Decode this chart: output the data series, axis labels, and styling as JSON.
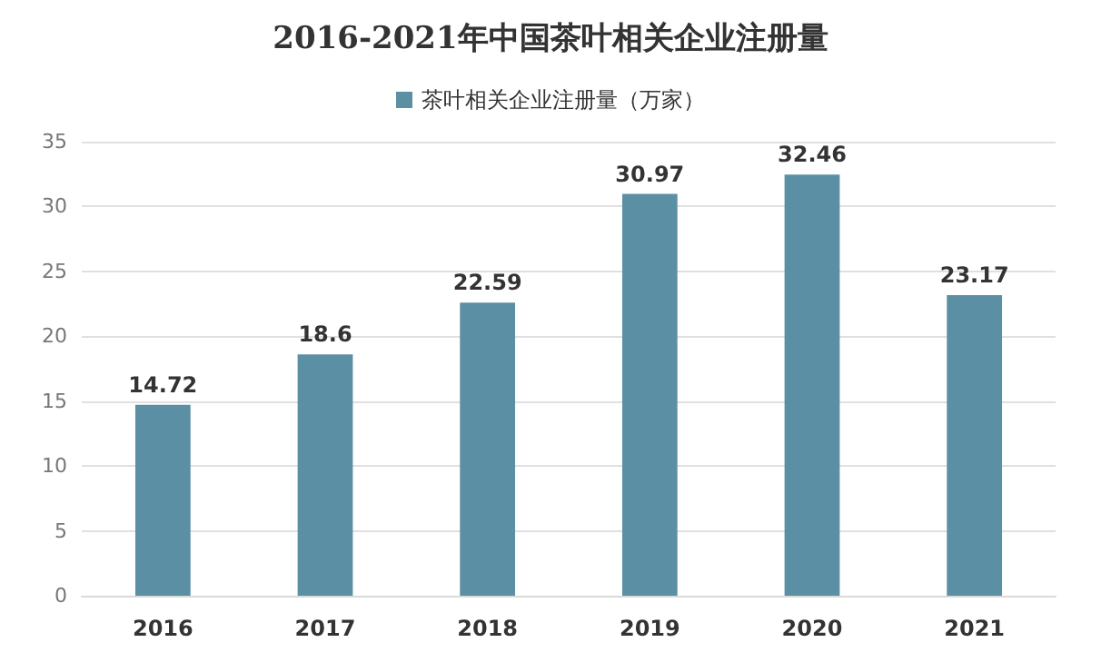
{
  "chart_data": {
    "type": "bar",
    "title": "2016-2021年中国茶叶相关企业注册量",
    "categories": [
      "2016",
      "2017",
      "2018",
      "2019",
      "2020",
      "2021"
    ],
    "series": [
      {
        "name": "茶叶相关企业注册量（万家）",
        "color": "#5b8fa3",
        "values": [
          14.72,
          18.6,
          22.59,
          30.97,
          32.46,
          23.17
        ]
      }
    ],
    "ylim": [
      0,
      35
    ],
    "yticks": [
      0,
      5,
      10,
      15,
      20,
      25,
      30,
      35
    ],
    "grid": "y",
    "legend": "top",
    "data_labels": true
  }
}
